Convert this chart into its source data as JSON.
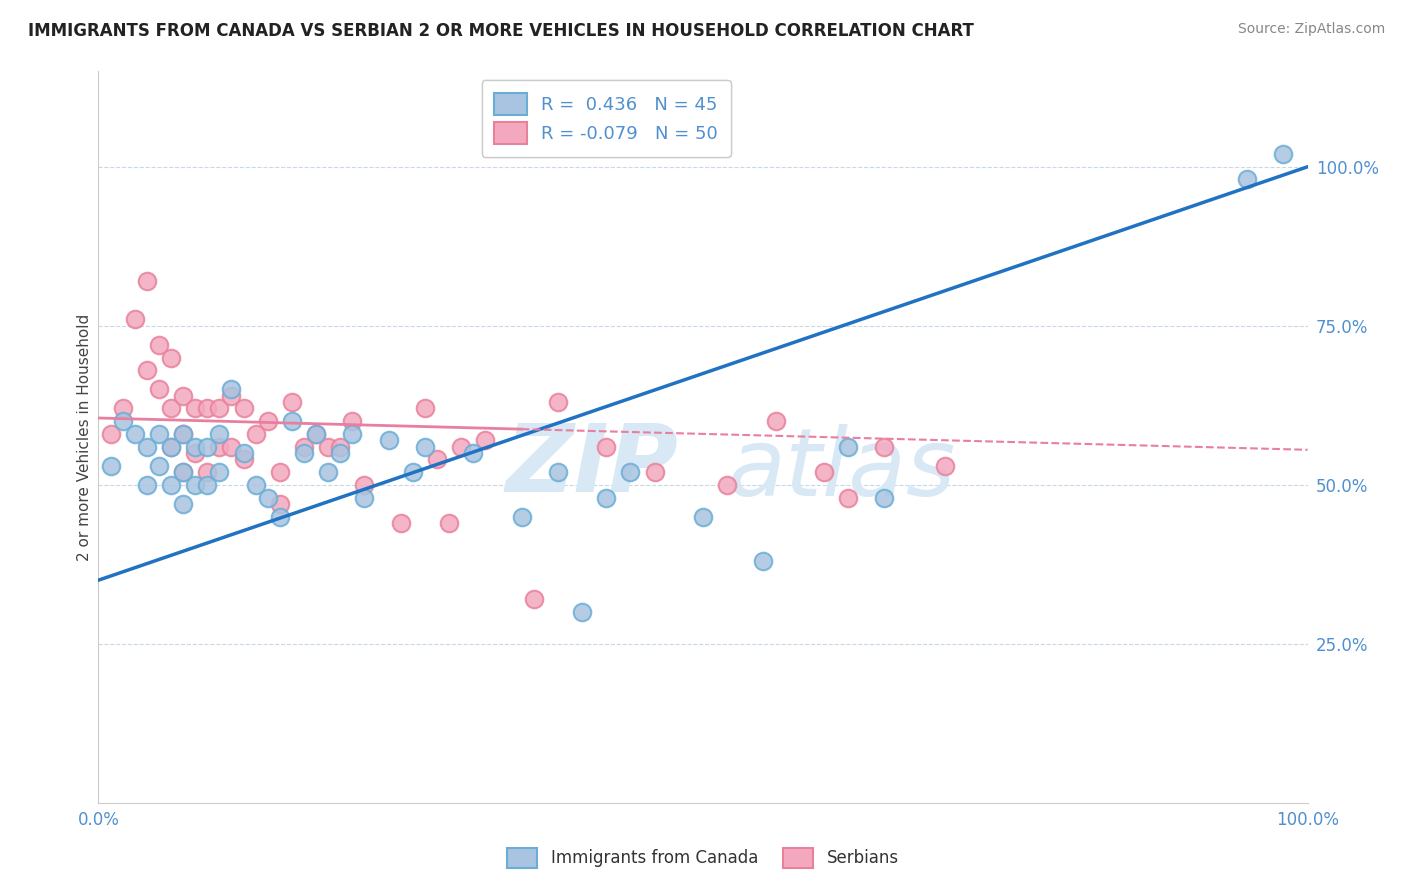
{
  "title": "IMMIGRANTS FROM CANADA VS SERBIAN 2 OR MORE VEHICLES IN HOUSEHOLD CORRELATION CHART",
  "source": "Source: ZipAtlas.com",
  "ylabel": "2 or more Vehicles in Household",
  "xlim": [
    0.0,
    1.0
  ],
  "ylim": [
    0.0,
    1.15
  ],
  "xtick_positions": [
    0.0,
    1.0
  ],
  "xtick_labels": [
    "0.0%",
    "100.0%"
  ],
  "ytick_positions": [
    0.25,
    0.5,
    0.75,
    1.0
  ],
  "ytick_labels": [
    "25.0%",
    "50.0%",
    "75.0%",
    "100.0%"
  ],
  "canada_color": "#a8c4e0",
  "canada_edge_color": "#6aaed6",
  "serbian_color": "#f4a8c0",
  "serbian_edge_color": "#e8829a",
  "canada_line_color": "#2272c3",
  "serbian_line_color": "#e87fa0",
  "grid_color": "#c8d8e8",
  "tick_color": "#5090d0",
  "title_color": "#222222",
  "source_color": "#888888",
  "watermark_color": "#d8e8f4",
  "canada_R": 0.436,
  "canada_N": 45,
  "serbian_R": -0.079,
  "serbian_N": 50,
  "canada_scatter_x": [
    0.01,
    0.02,
    0.03,
    0.04,
    0.04,
    0.05,
    0.05,
    0.06,
    0.06,
    0.07,
    0.07,
    0.07,
    0.08,
    0.08,
    0.09,
    0.09,
    0.1,
    0.1,
    0.11,
    0.12,
    0.13,
    0.14,
    0.15,
    0.16,
    0.17,
    0.18,
    0.19,
    0.2,
    0.21,
    0.22,
    0.24,
    0.26,
    0.27,
    0.31,
    0.35,
    0.38,
    0.4,
    0.42,
    0.44,
    0.5,
    0.55,
    0.62,
    0.65,
    0.95,
    0.98
  ],
  "canada_scatter_y": [
    0.53,
    0.6,
    0.58,
    0.56,
    0.5,
    0.58,
    0.53,
    0.56,
    0.5,
    0.58,
    0.52,
    0.47,
    0.56,
    0.5,
    0.56,
    0.5,
    0.58,
    0.52,
    0.65,
    0.55,
    0.5,
    0.48,
    0.45,
    0.6,
    0.55,
    0.58,
    0.52,
    0.55,
    0.58,
    0.48,
    0.57,
    0.52,
    0.56,
    0.55,
    0.45,
    0.52,
    0.3,
    0.48,
    0.52,
    0.45,
    0.38,
    0.56,
    0.48,
    0.98,
    1.02
  ],
  "serbian_scatter_x": [
    0.01,
    0.02,
    0.03,
    0.04,
    0.04,
    0.05,
    0.05,
    0.06,
    0.06,
    0.06,
    0.07,
    0.07,
    0.07,
    0.08,
    0.08,
    0.09,
    0.09,
    0.1,
    0.1,
    0.11,
    0.11,
    0.12,
    0.12,
    0.13,
    0.14,
    0.15,
    0.15,
    0.16,
    0.17,
    0.18,
    0.19,
    0.2,
    0.21,
    0.22,
    0.25,
    0.27,
    0.28,
    0.29,
    0.3,
    0.32,
    0.36,
    0.38,
    0.42,
    0.46,
    0.52,
    0.56,
    0.6,
    0.62,
    0.65,
    0.7
  ],
  "serbian_scatter_y": [
    0.58,
    0.62,
    0.76,
    0.82,
    0.68,
    0.72,
    0.65,
    0.7,
    0.62,
    0.56,
    0.64,
    0.58,
    0.52,
    0.62,
    0.55,
    0.62,
    0.52,
    0.62,
    0.56,
    0.64,
    0.56,
    0.62,
    0.54,
    0.58,
    0.6,
    0.52,
    0.47,
    0.63,
    0.56,
    0.58,
    0.56,
    0.56,
    0.6,
    0.5,
    0.44,
    0.62,
    0.54,
    0.44,
    0.56,
    0.57,
    0.32,
    0.63,
    0.56,
    0.52,
    0.5,
    0.6,
    0.52,
    0.48,
    0.56,
    0.53
  ]
}
